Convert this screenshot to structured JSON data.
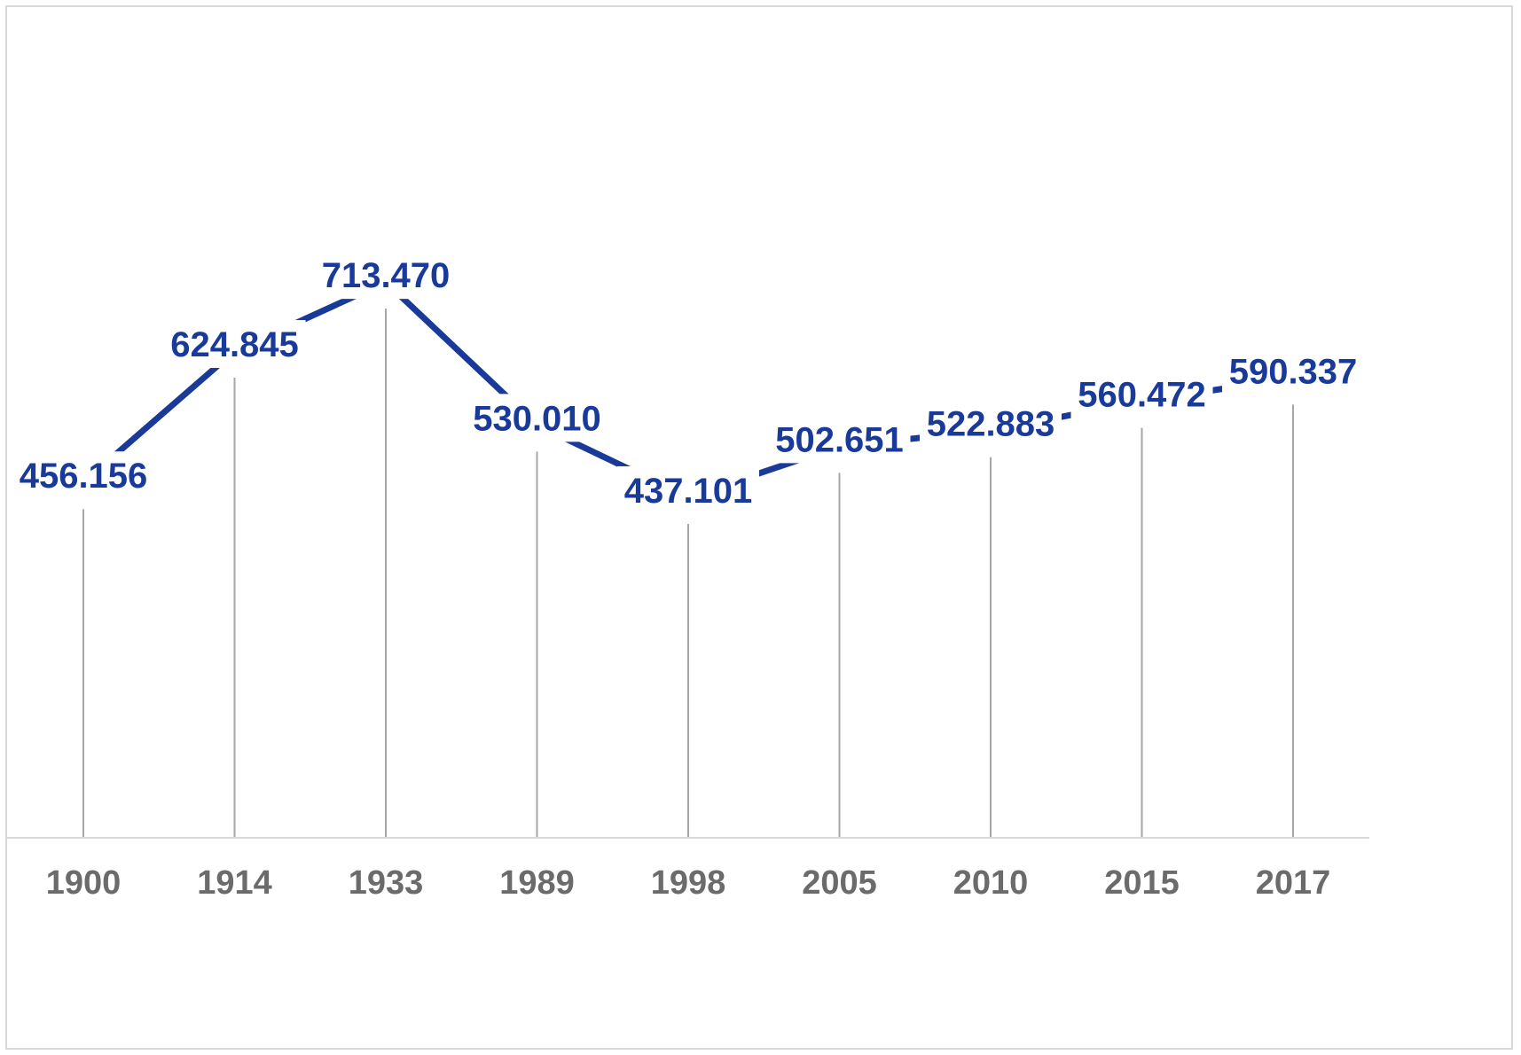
{
  "chart_data": {
    "type": "line",
    "title": "",
    "xlabel": "",
    "ylabel": "",
    "categories": [
      "1900",
      "1914",
      "1933",
      "1989",
      "1998",
      "2005",
      "2010",
      "2015",
      "2017"
    ],
    "series": [
      {
        "values": [
          456156,
          624845,
          713470,
          530010,
          437101,
          502651,
          522883,
          560472,
          590337
        ],
        "labels": [
          "456.156",
          "624.845",
          "713.470",
          "530.010",
          "437.101",
          "502.651",
          "522.883",
          "560.472",
          "590.337"
        ]
      }
    ],
    "ylim": [
      0,
      1000000
    ],
    "y_axis_visible": false,
    "grid": false,
    "drop_lines": true,
    "legend": "none",
    "colors": {
      "line": "#1a3a9a",
      "data_label": "#1a3a9a",
      "drop_line": "#a6a6a6",
      "axis_line": "#d9d9d9",
      "tick_label": "#6b6b6b",
      "frame": "#d9d9d9"
    }
  }
}
